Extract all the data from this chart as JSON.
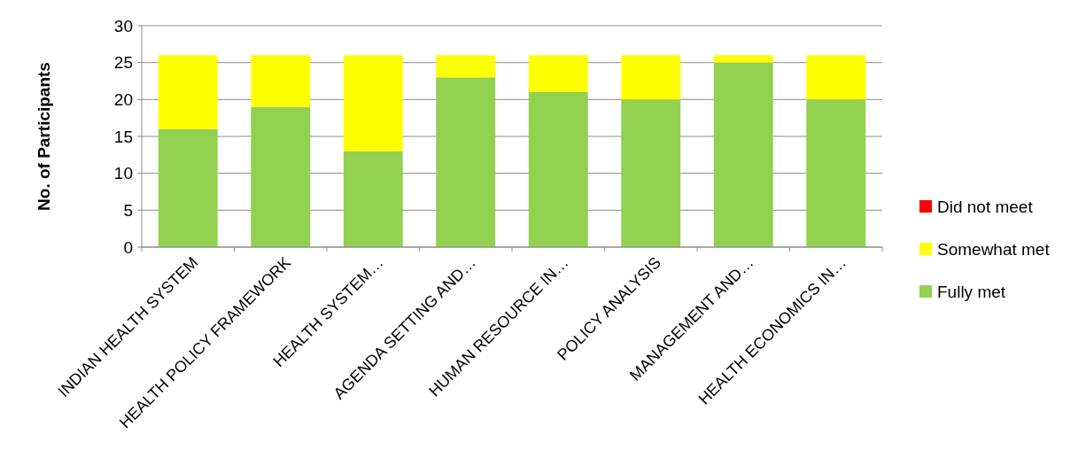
{
  "chart_data": {
    "type": "bar",
    "stacked": true,
    "ylabel": "No. of Participants",
    "categories": [
      "INDIAN HEALTH SYSTEM",
      "HEALTH POLICY FRAMEWORK",
      "HEALTH SYSTEM…",
      "AGENDA SETTING AND…",
      "HUMAN RESOURCE IN…",
      "POLICY ANALYSIS",
      "MANAGEMENT AND…",
      "HEALTH ECONOMICS IN…"
    ],
    "series": [
      {
        "name": "Fully met",
        "color": "#92d050",
        "values": [
          16,
          19,
          13,
          23,
          21,
          20,
          25,
          20
        ]
      },
      {
        "name": "Somewhat met",
        "color": "#ffff00",
        "values": [
          10,
          7,
          13,
          3,
          5,
          6,
          1,
          6
        ]
      },
      {
        "name": "Did not meet",
        "color": "#ff0000",
        "values": [
          0,
          0,
          0,
          0,
          0,
          0,
          0,
          0
        ]
      }
    ],
    "ylim": [
      0,
      30
    ],
    "yticks": [
      0,
      5,
      10,
      15,
      20,
      25,
      30
    ],
    "grid": "y",
    "legend": "right"
  }
}
